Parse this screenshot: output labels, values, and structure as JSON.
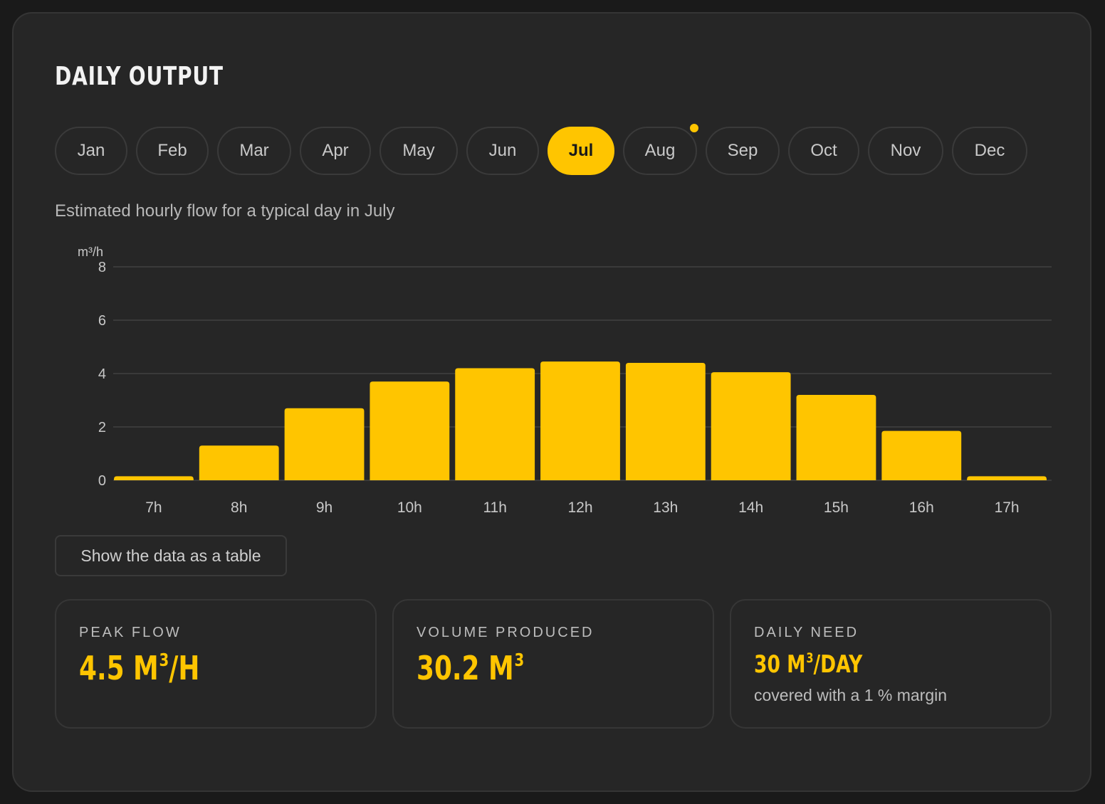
{
  "card": {
    "title": "Daily output",
    "subtitle": "Estimated hourly flow for a typical day in July",
    "table_button_label": "Show the data as a table"
  },
  "months": {
    "items": [
      "Jan",
      "Feb",
      "Mar",
      "Apr",
      "May",
      "Jun",
      "Jul",
      "Aug",
      "Sep",
      "Oct",
      "Nov",
      "Dec"
    ],
    "selected": "Jul",
    "dot_marker": "Aug"
  },
  "colors": {
    "accent": "#ffc500",
    "background": "#262626",
    "gridline": "#3a3a3a",
    "tick_text": "#c8c8c8"
  },
  "chart_data": {
    "type": "bar",
    "title": "",
    "xlabel": "",
    "ylabel": "m³/h",
    "categories": [
      "7h",
      "8h",
      "9h",
      "10h",
      "11h",
      "12h",
      "13h",
      "14h",
      "15h",
      "16h",
      "17h"
    ],
    "values": [
      0.15,
      1.3,
      2.7,
      3.7,
      4.2,
      4.45,
      4.4,
      4.05,
      3.2,
      1.85,
      0.15
    ],
    "ylim": [
      0,
      8
    ],
    "yticks": [
      "0",
      "2",
      "4",
      "6",
      "8"
    ],
    "grid": true,
    "legend": "none"
  },
  "stats": [
    {
      "label": "Peak flow",
      "value": "4.5 m",
      "sup": "3",
      "unit": "/h",
      "note": ""
    },
    {
      "label": "Volume produced",
      "value": "30.2 m",
      "sup": "3",
      "unit": "",
      "note": ""
    },
    {
      "label": "Daily need",
      "value": "30 m",
      "sup": "3",
      "unit": "/day",
      "note": "covered with a 1 % margin"
    }
  ]
}
